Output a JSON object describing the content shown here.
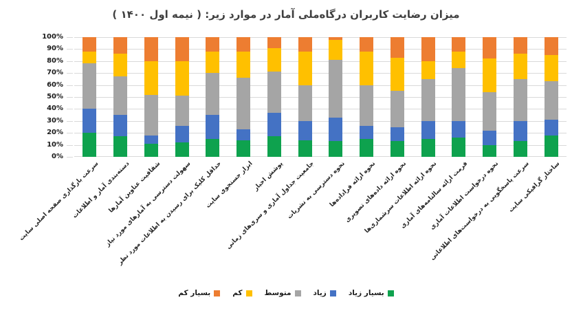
{
  "chart_data": {
    "type": "bar",
    "variant": "stacked-100-percent",
    "title": "میزان رضایت کاربران درگاه‌ملی آمار در موارد زیر: ( نیمه اول ۱۴۰۰ )",
    "xlabel": "",
    "ylabel": "",
    "ylim": [
      0,
      100
    ],
    "grid": true,
    "legend_position": "bottom-center",
    "y_ticks": [
      "100%",
      "90%",
      "80%",
      "70%",
      "60%",
      "50%",
      "40%",
      "30%",
      "20%",
      "10%",
      "0%"
    ],
    "categories": [
      "سرعت بارگذاری صفحه اصلی سایت",
      "دسته‌بندی آمار و اطلاعات",
      "شفافیت عناوین آمارها",
      "سهولت دسترسی به آمارهای مورد نیاز",
      "حداقل کلیک برای رسیدن به اطلاعات مورد نظر",
      "ابزار جستجوی سایت",
      "پوشش اخبار",
      "جامعیت جداول آماری و سری‌های زمانی",
      "نحوه دسترسی به نشریات",
      "نحوه ارائه فراداده‌ها",
      "نحوه ارائه داده‌های تصویری",
      "نحوه ارائه اطلاعات سرشماری‌ها",
      "فرمت ارائه سالنامه‌های آماری",
      "نحوه درخواست اطلاعات آماری",
      "سرعت پاسخگویی به درخواست‌های اطلاعاتی",
      "ساختار گرافیکی سایت"
    ],
    "series": [
      {
        "name": "بسیار زیاد",
        "color": "#0ea24e",
        "values": [
          20,
          17,
          11,
          12,
          15,
          14,
          17,
          14,
          13,
          15,
          13,
          15,
          16,
          10,
          13,
          18
        ]
      },
      {
        "name": "زیاد",
        "color": "#4472c4",
        "values": [
          20,
          18,
          7,
          14,
          20,
          9,
          20,
          16,
          20,
          11,
          12,
          15,
          14,
          12,
          17,
          13
        ]
      },
      {
        "name": "متوسط",
        "color": "#a5a5a5",
        "values": [
          38,
          32,
          34,
          25,
          35,
          43,
          34,
          30,
          48,
          34,
          30,
          35,
          44,
          32,
          35,
          32
        ]
      },
      {
        "name": "کم",
        "color": "#ffc000",
        "values": [
          10,
          19,
          28,
          29,
          18,
          22,
          20,
          28,
          17,
          28,
          28,
          15,
          14,
          28,
          21,
          22
        ]
      },
      {
        "name": "بسیار کم",
        "color": "#ed7d31",
        "values": [
          12,
          14,
          20,
          20,
          12,
          12,
          9,
          12,
          2,
          12,
          17,
          20,
          12,
          18,
          14,
          15
        ]
      }
    ]
  },
  "colors": {
    "title_text": "#3f3f3f",
    "axis_text": "#1a1a1a",
    "gridline": "#d9d9d9",
    "background": "#ffffff"
  }
}
